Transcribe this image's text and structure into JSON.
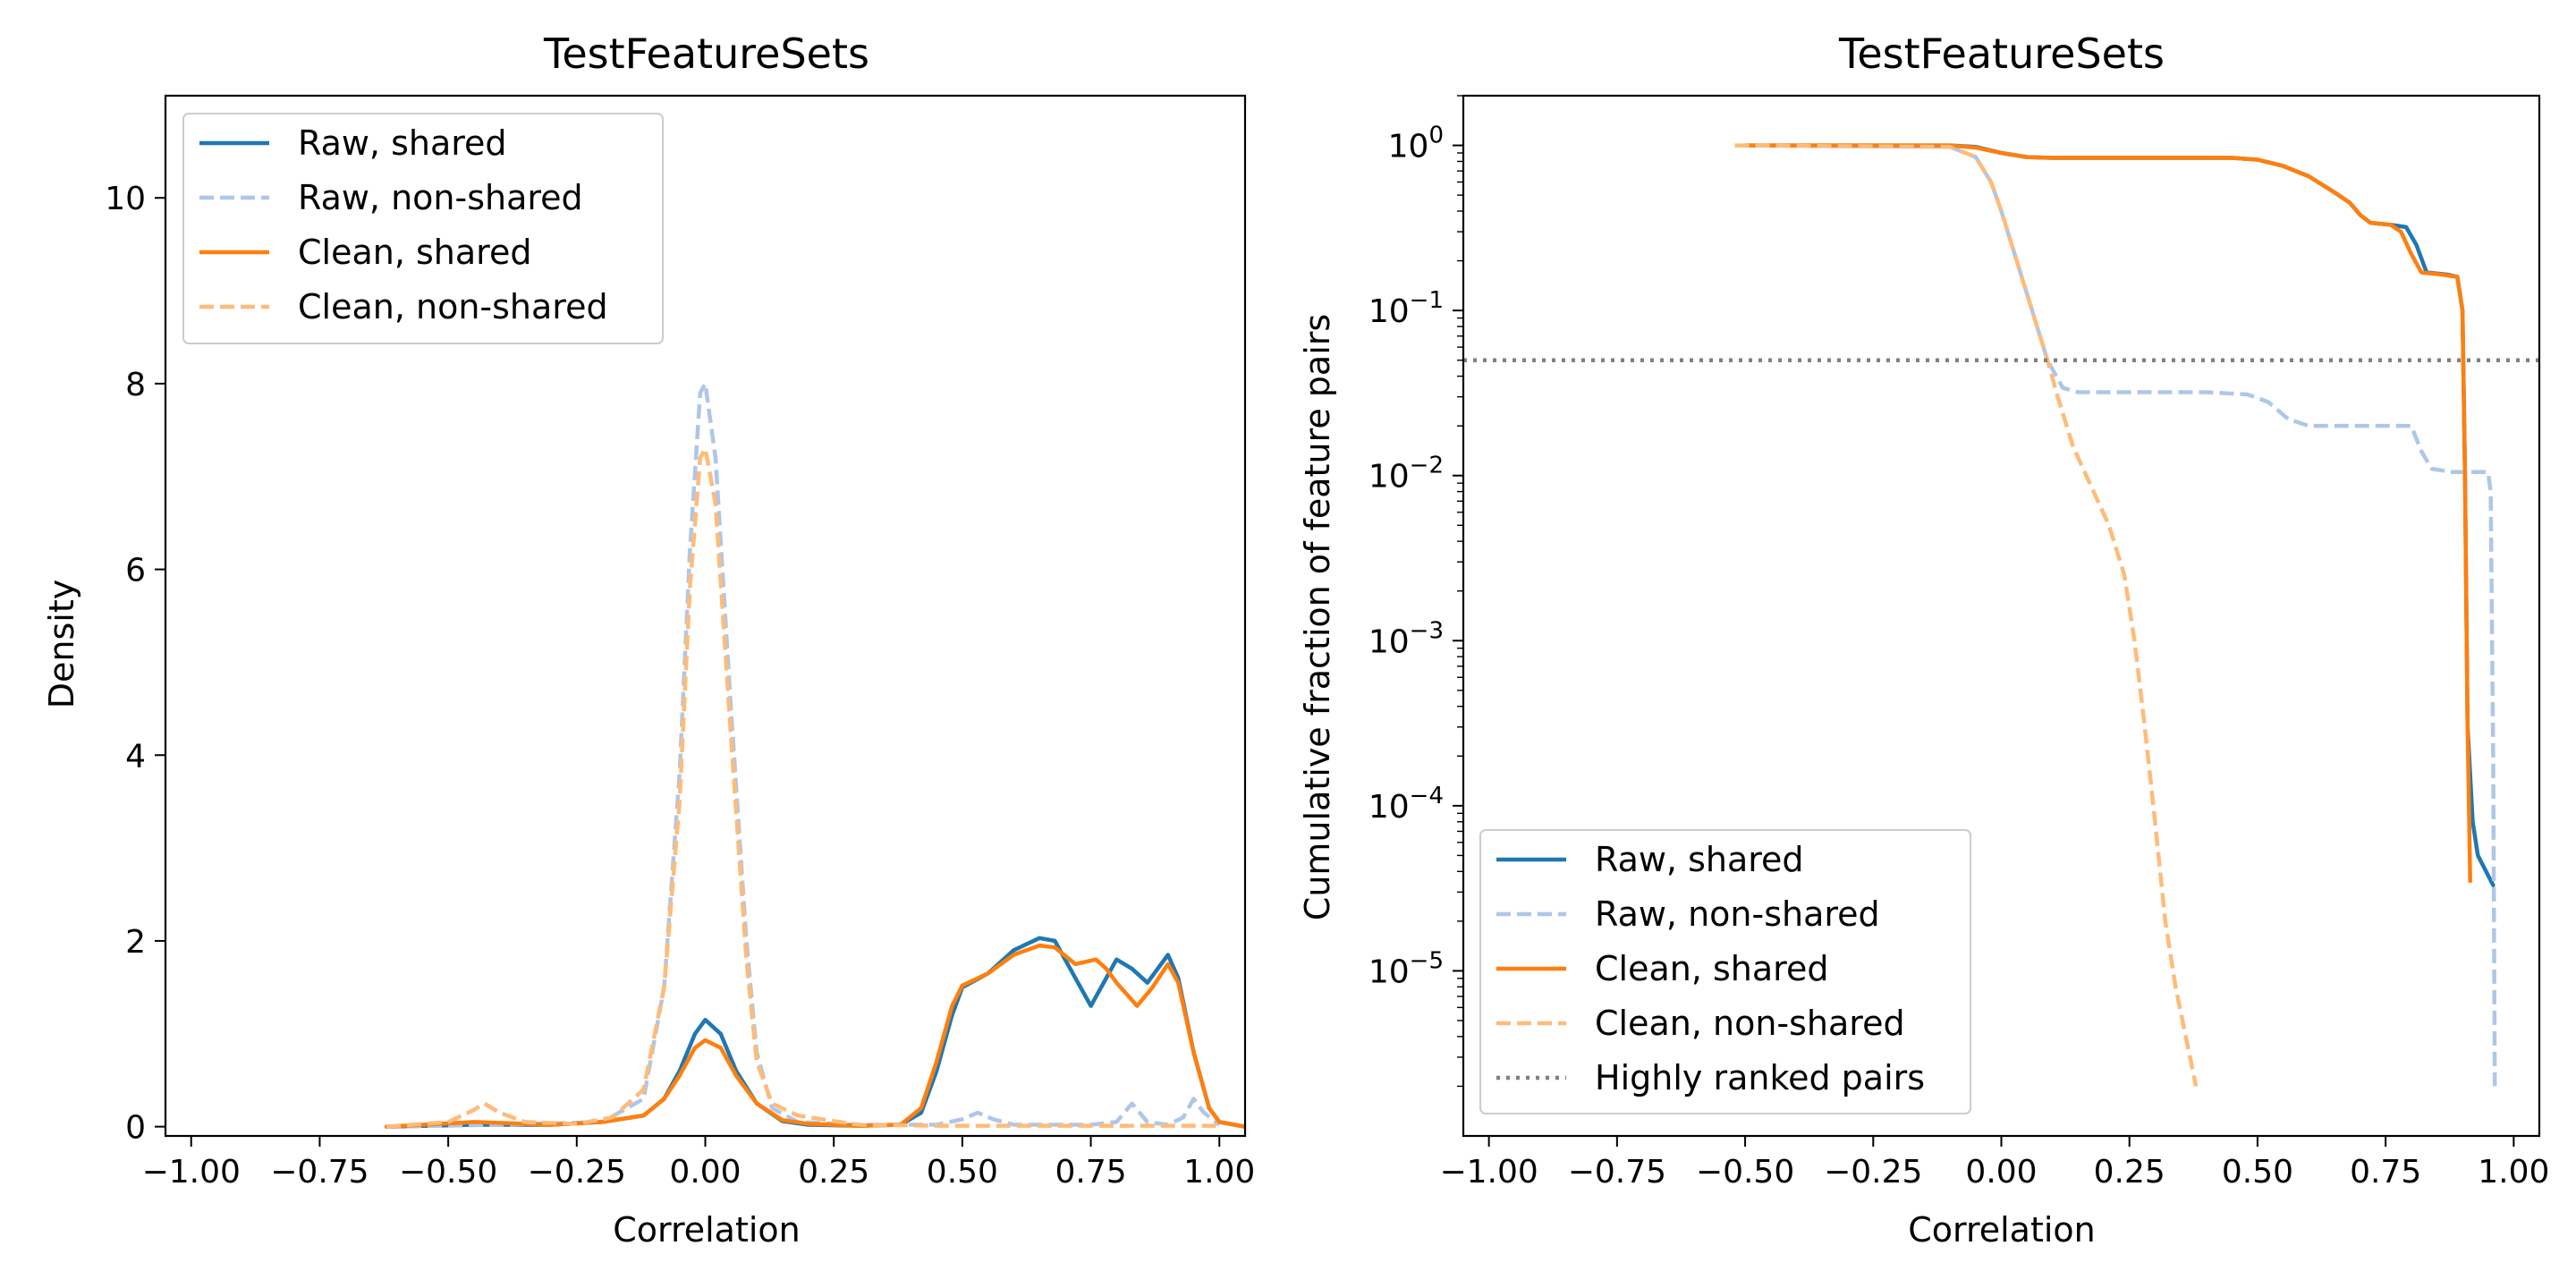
{
  "chart_data": [
    {
      "type": "line",
      "title": "TestFeatureSets",
      "xlabel": "Correlation",
      "ylabel": "Density",
      "xlim": [
        -1.05,
        1.05
      ],
      "ylim": [
        -0.1,
        11.1
      ],
      "xticks": [
        -1.0,
        -0.75,
        -0.5,
        -0.25,
        0.0,
        0.25,
        0.5,
        0.75,
        1.0
      ],
      "xtick_labels": [
        "−1.00",
        "−0.75",
        "−0.50",
        "−0.25",
        "0.00",
        "0.25",
        "0.50",
        "0.75",
        "1.00"
      ],
      "yticks": [
        0,
        2,
        4,
        6,
        8,
        10
      ],
      "ytick_labels": [
        "0",
        "2",
        "4",
        "6",
        "8",
        "10"
      ],
      "legend_position": "top-left",
      "series": [
        {
          "name": "Raw, shared",
          "color": "#1f77b4",
          "dash": "solid",
          "points": [
            [
              -0.62,
              0
            ],
            [
              -0.45,
              0.02
            ],
            [
              -0.3,
              0.02
            ],
            [
              -0.2,
              0.05
            ],
            [
              -0.12,
              0.12
            ],
            [
              -0.08,
              0.3
            ],
            [
              -0.05,
              0.6
            ],
            [
              -0.02,
              1.0
            ],
            [
              0.0,
              1.15
            ],
            [
              0.03,
              1.0
            ],
            [
              0.06,
              0.6
            ],
            [
              0.1,
              0.25
            ],
            [
              0.15,
              0.06
            ],
            [
              0.2,
              0.02
            ],
            [
              0.3,
              0.01
            ],
            [
              0.38,
              0.02
            ],
            [
              0.42,
              0.15
            ],
            [
              0.45,
              0.6
            ],
            [
              0.48,
              1.2
            ],
            [
              0.5,
              1.5
            ],
            [
              0.55,
              1.65
            ],
            [
              0.6,
              1.9
            ],
            [
              0.65,
              2.03
            ],
            [
              0.68,
              2.0
            ],
            [
              0.72,
              1.6
            ],
            [
              0.75,
              1.3
            ],
            [
              0.78,
              1.6
            ],
            [
              0.8,
              1.8
            ],
            [
              0.83,
              1.7
            ],
            [
              0.86,
              1.55
            ],
            [
              0.9,
              1.85
            ],
            [
              0.92,
              1.6
            ],
            [
              0.95,
              0.8
            ],
            [
              0.98,
              0.2
            ],
            [
              1.0,
              0.05
            ],
            [
              1.05,
              0.0
            ]
          ]
        },
        {
          "name": "Raw, non-shared",
          "color": "#aec7e8",
          "dash": "dashed",
          "points": [
            [
              -0.62,
              0
            ],
            [
              -0.4,
              0.02
            ],
            [
              -0.2,
              0.05
            ],
            [
              -0.12,
              0.3
            ],
            [
              -0.08,
              1.5
            ],
            [
              -0.05,
              3.8
            ],
            [
              -0.03,
              6.2
            ],
            [
              -0.01,
              7.9
            ],
            [
              0.0,
              8.0
            ],
            [
              0.02,
              7.2
            ],
            [
              0.05,
              4.5
            ],
            [
              0.08,
              2.0
            ],
            [
              0.1,
              0.8
            ],
            [
              0.13,
              0.2
            ],
            [
              0.18,
              0.05
            ],
            [
              0.3,
              0.02
            ],
            [
              0.45,
              0.02
            ],
            [
              0.5,
              0.08
            ],
            [
              0.53,
              0.15
            ],
            [
              0.56,
              0.08
            ],
            [
              0.6,
              0.02
            ],
            [
              0.75,
              0.02
            ],
            [
              0.8,
              0.05
            ],
            [
              0.83,
              0.25
            ],
            [
              0.86,
              0.05
            ],
            [
              0.9,
              0.02
            ],
            [
              0.93,
              0.1
            ],
            [
              0.95,
              0.3
            ],
            [
              0.97,
              0.15
            ],
            [
              1.0,
              0.02
            ]
          ]
        },
        {
          "name": "Clean, shared",
          "color": "#ff7f0e",
          "dash": "solid",
          "points": [
            [
              -0.62,
              0
            ],
            [
              -0.55,
              0.02
            ],
            [
              -0.45,
              0.05
            ],
            [
              -0.3,
              0.02
            ],
            [
              -0.2,
              0.05
            ],
            [
              -0.12,
              0.12
            ],
            [
              -0.08,
              0.3
            ],
            [
              -0.05,
              0.55
            ],
            [
              -0.02,
              0.85
            ],
            [
              0.0,
              0.93
            ],
            [
              0.03,
              0.85
            ],
            [
              0.06,
              0.55
            ],
            [
              0.1,
              0.25
            ],
            [
              0.15,
              0.07
            ],
            [
              0.2,
              0.03
            ],
            [
              0.3,
              0.01
            ],
            [
              0.38,
              0.02
            ],
            [
              0.42,
              0.2
            ],
            [
              0.45,
              0.7
            ],
            [
              0.48,
              1.3
            ],
            [
              0.5,
              1.52
            ],
            [
              0.55,
              1.65
            ],
            [
              0.6,
              1.85
            ],
            [
              0.65,
              1.95
            ],
            [
              0.68,
              1.93
            ],
            [
              0.72,
              1.75
            ],
            [
              0.76,
              1.8
            ],
            [
              0.78,
              1.7
            ],
            [
              0.8,
              1.55
            ],
            [
              0.84,
              1.3
            ],
            [
              0.87,
              1.5
            ],
            [
              0.9,
              1.75
            ],
            [
              0.92,
              1.55
            ],
            [
              0.95,
              0.8
            ],
            [
              0.98,
              0.2
            ],
            [
              1.0,
              0.05
            ],
            [
              1.05,
              0.0
            ]
          ]
        },
        {
          "name": "Clean, non-shared",
          "color": "#ffbb78",
          "dash": "dashed",
          "points": [
            [
              -0.62,
              0
            ],
            [
              -0.5,
              0.05
            ],
            [
              -0.45,
              0.18
            ],
            [
              -0.43,
              0.25
            ],
            [
              -0.4,
              0.15
            ],
            [
              -0.35,
              0.05
            ],
            [
              -0.25,
              0.03
            ],
            [
              -0.18,
              0.1
            ],
            [
              -0.12,
              0.4
            ],
            [
              -0.08,
              1.5
            ],
            [
              -0.05,
              3.5
            ],
            [
              -0.03,
              5.8
            ],
            [
              -0.01,
              7.2
            ],
            [
              0.0,
              7.3
            ],
            [
              0.02,
              6.7
            ],
            [
              0.05,
              4.2
            ],
            [
              0.08,
              1.8
            ],
            [
              0.1,
              0.7
            ],
            [
              0.13,
              0.25
            ],
            [
              0.18,
              0.12
            ],
            [
              0.25,
              0.06
            ],
            [
              0.3,
              0.02
            ],
            [
              0.45,
              0.01
            ],
            [
              0.6,
              0.01
            ],
            [
              0.8,
              0.01
            ],
            [
              1.0,
              0.01
            ]
          ]
        }
      ]
    },
    {
      "type": "line",
      "title": "TestFeatureSets",
      "xlabel": "Correlation",
      "ylabel": "Cumulative fraction of feature pairs",
      "yscale": "log",
      "xlim": [
        -1.05,
        1.05
      ],
      "ylim": [
        1e-06,
        2
      ],
      "xticks": [
        -1.0,
        -0.75,
        -0.5,
        -0.25,
        0.0,
        0.25,
        0.5,
        0.75,
        1.0
      ],
      "xtick_labels": [
        "−1.00",
        "−0.75",
        "−0.50",
        "−0.25",
        "0.00",
        "0.25",
        "0.50",
        "0.75",
        "1.00"
      ],
      "yticks": [
        1,
        0.1,
        0.01,
        0.001,
        0.0001,
        1e-05
      ],
      "ytick_base": "10",
      "ytick_exponents": [
        "0",
        "−1",
        "−2",
        "−3",
        "−4",
        "−5"
      ],
      "legend_position": "bottom-left",
      "series": [
        {
          "name": "Raw, shared",
          "color": "#1f77b4",
          "dash": "solid",
          "points": [
            [
              -0.5,
              1.0
            ],
            [
              -0.1,
              1.0
            ],
            [
              -0.05,
              0.98
            ],
            [
              0.0,
              0.9
            ],
            [
              0.05,
              0.85
            ],
            [
              0.1,
              0.84
            ],
            [
              0.3,
              0.84
            ],
            [
              0.45,
              0.84
            ],
            [
              0.5,
              0.82
            ],
            [
              0.55,
              0.75
            ],
            [
              0.6,
              0.65
            ],
            [
              0.65,
              0.52
            ],
            [
              0.68,
              0.45
            ],
            [
              0.7,
              0.38
            ],
            [
              0.72,
              0.34
            ],
            [
              0.76,
              0.33
            ],
            [
              0.79,
              0.32
            ],
            [
              0.81,
              0.25
            ],
            [
              0.83,
              0.17
            ],
            [
              0.87,
              0.165
            ],
            [
              0.89,
              0.16
            ],
            [
              0.9,
              0.1
            ],
            [
              0.905,
              0.01
            ],
            [
              0.91,
              0.0003
            ],
            [
              0.92,
              8e-05
            ],
            [
              0.93,
              5e-05
            ],
            [
              0.96,
              3.3e-05
            ]
          ]
        },
        {
          "name": "Raw, non-shared",
          "color": "#aec7e8",
          "dash": "dashed",
          "points": [
            [
              -0.5,
              1.0
            ],
            [
              -0.1,
              0.98
            ],
            [
              -0.05,
              0.85
            ],
            [
              -0.02,
              0.6
            ],
            [
              0.0,
              0.4
            ],
            [
              0.03,
              0.2
            ],
            [
              0.06,
              0.1
            ],
            [
              0.09,
              0.05
            ],
            [
              0.12,
              0.034
            ],
            [
              0.15,
              0.032
            ],
            [
              0.4,
              0.032
            ],
            [
              0.48,
              0.031
            ],
            [
              0.52,
              0.028
            ],
            [
              0.56,
              0.022
            ],
            [
              0.6,
              0.02
            ],
            [
              0.8,
              0.02
            ],
            [
              0.82,
              0.014
            ],
            [
              0.84,
              0.011
            ],
            [
              0.88,
              0.0105
            ],
            [
              0.95,
              0.0105
            ],
            [
              0.955,
              0.008
            ],
            [
              0.96,
              0.0002
            ],
            [
              0.963,
              2e-06
            ]
          ]
        },
        {
          "name": "Clean, shared",
          "color": "#ff7f0e",
          "dash": "solid",
          "points": [
            [
              -0.5,
              1.0
            ],
            [
              -0.1,
              1.0
            ],
            [
              -0.05,
              0.97
            ],
            [
              0.0,
              0.9
            ],
            [
              0.05,
              0.85
            ],
            [
              0.1,
              0.84
            ],
            [
              0.3,
              0.84
            ],
            [
              0.45,
              0.84
            ],
            [
              0.5,
              0.82
            ],
            [
              0.55,
              0.75
            ],
            [
              0.6,
              0.65
            ],
            [
              0.65,
              0.52
            ],
            [
              0.68,
              0.45
            ],
            [
              0.7,
              0.38
            ],
            [
              0.72,
              0.34
            ],
            [
              0.76,
              0.33
            ],
            [
              0.78,
              0.3
            ],
            [
              0.8,
              0.22
            ],
            [
              0.82,
              0.17
            ],
            [
              0.86,
              0.165
            ],
            [
              0.89,
              0.16
            ],
            [
              0.9,
              0.1
            ],
            [
              0.905,
              0.01
            ],
            [
              0.91,
              0.0003
            ],
            [
              0.915,
              3.5e-05
            ]
          ]
        },
        {
          "name": "Clean, non-shared",
          "color": "#ffbb78",
          "dash": "dashed",
          "points": [
            [
              -0.52,
              1.0
            ],
            [
              -0.1,
              0.98
            ],
            [
              -0.05,
              0.85
            ],
            [
              -0.02,
              0.6
            ],
            [
              0.0,
              0.4
            ],
            [
              0.03,
              0.2
            ],
            [
              0.06,
              0.1
            ],
            [
              0.09,
              0.05
            ],
            [
              0.11,
              0.03
            ],
            [
              0.14,
              0.015
            ],
            [
              0.18,
              0.008
            ],
            [
              0.21,
              0.005
            ],
            [
              0.24,
              0.0025
            ],
            [
              0.26,
              0.001
            ],
            [
              0.28,
              0.0003
            ],
            [
              0.3,
              8e-05
            ],
            [
              0.32,
              2e-05
            ],
            [
              0.34,
              8e-06
            ],
            [
              0.36,
              4e-06
            ],
            [
              0.38,
              2e-06
            ]
          ]
        },
        {
          "name": "Highly ranked pairs",
          "color": "#808080",
          "dash": "dotted",
          "points": [
            [
              -1.05,
              0.05
            ],
            [
              1.05,
              0.05
            ]
          ]
        }
      ]
    }
  ]
}
